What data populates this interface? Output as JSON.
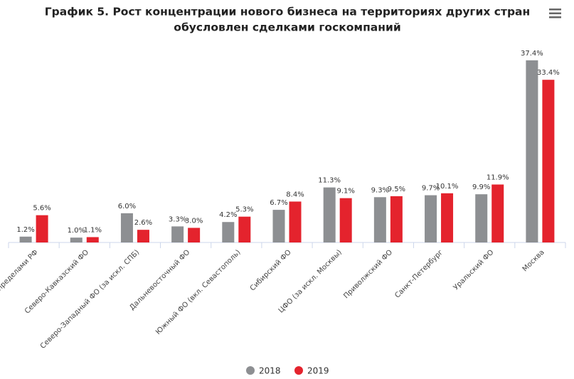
{
  "chart_data": {
    "type": "bar",
    "title": "График 5. Рост концентрации нового бизнеса на территориях других стран",
    "subtitle": "обусловлен сделками госкомпаний",
    "categories": [
      "НБ за пределами РФ",
      "Северо-Кавказский ФО",
      "Северо-Западный ФО (за искл. СПБ)",
      "Дальневосточный ФО",
      "Южный ФО (вкл. Севастополь)",
      "Сибирский ФО",
      "ЦФО (за искл. Москвы)",
      "Приволжский ФО",
      "Санкт-Петербург",
      "Уральский ФО",
      "Москва"
    ],
    "series": [
      {
        "name": "2018",
        "color": "#8d8f92",
        "values": [
          1.2,
          1.0,
          6.0,
          3.3,
          4.2,
          6.7,
          11.3,
          9.3,
          9.7,
          9.9,
          37.4
        ],
        "value_labels": [
          "1.2%",
          "1.0%",
          "6.0%",
          "3.3%",
          "4.2%",
          "6.7%",
          "11.3%",
          "9.3%",
          "9.7%",
          "9.9%",
          "37.4%"
        ]
      },
      {
        "name": "2019",
        "color": "#e4232d",
        "values": [
          5.6,
          1.1,
          2.6,
          3.0,
          5.3,
          8.4,
          9.1,
          9.5,
          10.1,
          11.9,
          33.4
        ],
        "value_labels": [
          "5.6%",
          "1.1%",
          "2.6%",
          "3.0%",
          "5.3%",
          "8.4%",
          "9.1%",
          "9.5%",
          "10.1%",
          "11.9%",
          "33.4%"
        ]
      }
    ],
    "ylim": [
      0,
      40
    ]
  }
}
